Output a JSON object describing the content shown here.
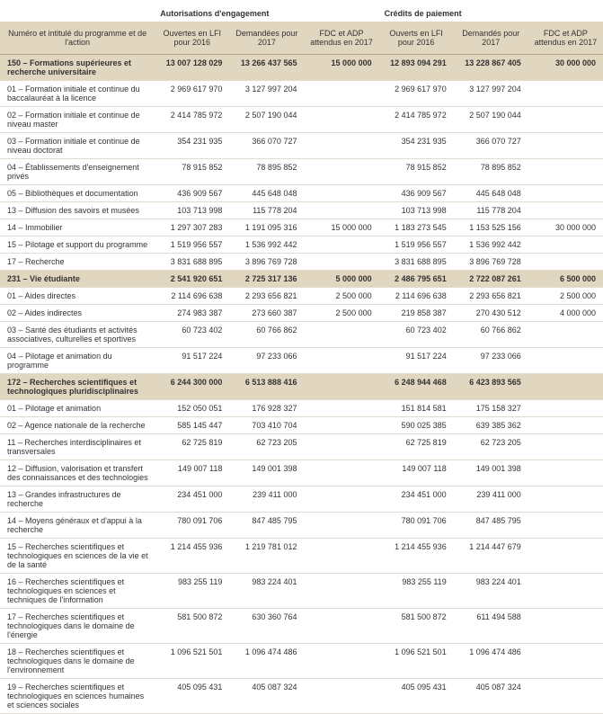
{
  "headers": {
    "group1": "Autorisations d'engagement",
    "group2": "Crédits de paiement",
    "label": "Numéro et intitulé du programme et de l'action",
    "c1": "Ouvertes en LFI pour 2016",
    "c2": "Demandées pour 2017",
    "c3": "FDC et ADP attendus en 2017",
    "c4": "Ouverts en LFI pour 2016",
    "c5": "Demandés pour 2017",
    "c6": "FDC et ADP attendus en 2017"
  },
  "rows": [
    {
      "type": "program",
      "label": "150 – Formations supérieures et recherche universitaire",
      "v": [
        "13 007 128 029",
        "13 266 437 565",
        "15 000 000",
        "12 893 094 291",
        "13 228 867 405",
        "30 000 000"
      ]
    },
    {
      "type": "action",
      "label": "01 – Formation initiale et continue du baccalauréat à la licence",
      "v": [
        "2 969 617 970",
        "3 127 997 204",
        "",
        "2 969 617 970",
        "3 127 997 204",
        ""
      ]
    },
    {
      "type": "action",
      "label": "02 – Formation initiale et continue de niveau master",
      "v": [
        "2 414 785 972",
        "2 507 190 044",
        "",
        "2 414 785 972",
        "2 507 190 044",
        ""
      ]
    },
    {
      "type": "action",
      "label": "03 – Formation initiale et continue de niveau doctorat",
      "v": [
        "354 231 935",
        "366 070 727",
        "",
        "354 231 935",
        "366 070 727",
        ""
      ]
    },
    {
      "type": "action",
      "label": "04 – Établissements d'enseignement privés",
      "v": [
        "78 915 852",
        "78 895 852",
        "",
        "78 915 852",
        "78 895 852",
        ""
      ]
    },
    {
      "type": "action",
      "label": "05 – Bibliothèques et documentation",
      "v": [
        "436 909 567",
        "445 648 048",
        "",
        "436 909 567",
        "445 648 048",
        ""
      ]
    },
    {
      "type": "action",
      "label": "13 – Diffusion des savoirs et musées",
      "v": [
        "103 713 998",
        "115 778 204",
        "",
        "103 713 998",
        "115 778 204",
        ""
      ]
    },
    {
      "type": "action",
      "label": "14 – Immobilier",
      "v": [
        "1 297 307 283",
        "1 191 095 316",
        "15 000 000",
        "1 183 273 545",
        "1 153 525 156",
        "30 000 000"
      ]
    },
    {
      "type": "action",
      "label": "15 – Pilotage et support du programme",
      "v": [
        "1 519 956 557",
        "1 536 992 442",
        "",
        "1 519 956 557",
        "1 536 992 442",
        ""
      ]
    },
    {
      "type": "action",
      "label": "17 – Recherche",
      "v": [
        "3 831 688 895",
        "3 896 769 728",
        "",
        "3 831 688 895",
        "3 896 769 728",
        ""
      ]
    },
    {
      "type": "program",
      "label": "231 – Vie étudiante",
      "v": [
        "2 541 920 651",
        "2 725 317 136",
        "5 000 000",
        "2 486 795 651",
        "2 722 087 261",
        "6 500 000"
      ]
    },
    {
      "type": "action",
      "label": "01 – Aides directes",
      "v": [
        "2 114 696 638",
        "2 293 656 821",
        "2 500 000",
        "2 114 696 638",
        "2 293 656 821",
        "2 500 000"
      ]
    },
    {
      "type": "action",
      "label": "02 – Aides indirectes",
      "v": [
        "274 983 387",
        "273 660 387",
        "2 500 000",
        "219 858 387",
        "270 430 512",
        "4 000 000"
      ]
    },
    {
      "type": "action",
      "label": "03 – Santé des étudiants et activités associatives, culturelles et sportives",
      "v": [
        "60 723 402",
        "60 766 862",
        "",
        "60 723 402",
        "60 766 862",
        ""
      ]
    },
    {
      "type": "action",
      "label": "04 – Pilotage et animation du programme",
      "v": [
        "91 517 224",
        "97 233 066",
        "",
        "91 517 224",
        "97 233 066",
        ""
      ]
    },
    {
      "type": "program",
      "label": "172 – Recherches scientifiques et technologiques pluridisciplinaires",
      "v": [
        "6 244 300 000",
        "6 513 888 416",
        "",
        "6 248 944 468",
        "6 423 893 565",
        ""
      ]
    },
    {
      "type": "action",
      "label": "01 – Pilotage et animation",
      "v": [
        "152 050 051",
        "176 928 327",
        "",
        "151 814 581",
        "175 158 327",
        ""
      ]
    },
    {
      "type": "action",
      "label": "02 – Agence nationale de la recherche",
      "v": [
        "585 145 447",
        "703 410 704",
        "",
        "590 025 385",
        "639 385 362",
        ""
      ]
    },
    {
      "type": "action",
      "label": "11 – Recherches interdisciplinaires et transversales",
      "v": [
        "62 725 819",
        "62 723 205",
        "",
        "62 725 819",
        "62 723 205",
        ""
      ]
    },
    {
      "type": "action",
      "label": "12 – Diffusion, valorisation et transfert des connaissances et des technologies",
      "v": [
        "149 007 118",
        "149 001 398",
        "",
        "149 007 118",
        "149 001 398",
        ""
      ]
    },
    {
      "type": "action",
      "label": "13 – Grandes infrastructures de recherche",
      "v": [
        "234 451 000",
        "239 411 000",
        "",
        "234 451 000",
        "239 411 000",
        ""
      ]
    },
    {
      "type": "action",
      "label": "14 – Moyens généraux et d'appui à la recherche",
      "v": [
        "780 091 706",
        "847 485 795",
        "",
        "780 091 706",
        "847 485 795",
        ""
      ]
    },
    {
      "type": "action",
      "label": "15 – Recherches scientifiques et technologiques en sciences de la vie et de la santé",
      "v": [
        "1 214 455 936",
        "1 219 781 012",
        "",
        "1 214 455 936",
        "1 214 447 679",
        ""
      ]
    },
    {
      "type": "action",
      "label": "16 – Recherches scientifiques et technologiques en sciences et techniques de l'information",
      "v": [
        "983 255 119",
        "983 224 401",
        "",
        "983 255 119",
        "983 224 401",
        ""
      ]
    },
    {
      "type": "action",
      "label": "17 – Recherches scientifiques et technologiques dans le domaine de l'énergie",
      "v": [
        "581 500 872",
        "630 360 764",
        "",
        "581 500 872",
        "611 494 588",
        ""
      ]
    },
    {
      "type": "action",
      "label": "18 – Recherches scientifiques et technologiques dans le domaine de l'environnement",
      "v": [
        "1 096 521 501",
        "1 096 474 486",
        "",
        "1 096 521 501",
        "1 096 474 486",
        ""
      ]
    },
    {
      "type": "action",
      "label": "19 – Recherches scientifiques et technologiques en sciences humaines et sciences sociales",
      "v": [
        "405 095 431",
        "405 087 324",
        "",
        "405 095 431",
        "405 087 324",
        ""
      ]
    }
  ]
}
